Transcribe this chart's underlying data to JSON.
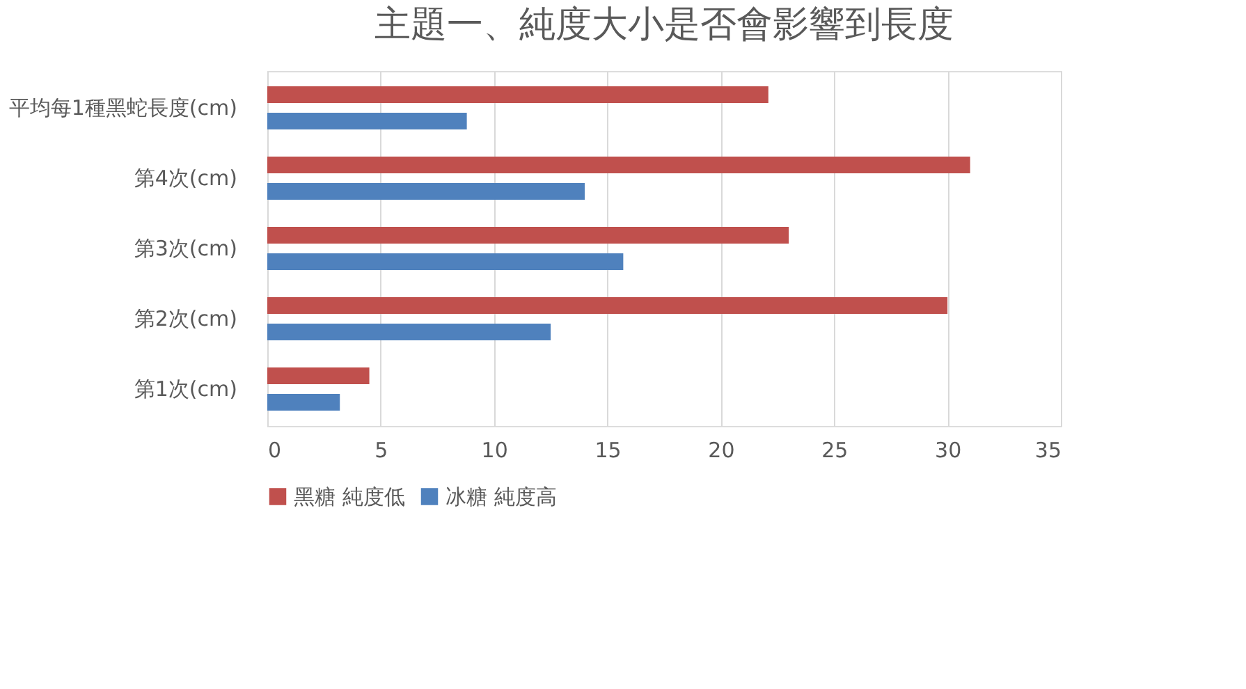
{
  "chart_data": {
    "type": "bar",
    "orientation": "horizontal",
    "title": "主題一、純度大小是否會影響到長度",
    "categories": [
      "平均每1種黑蛇長度(cm)",
      "第4次(cm)",
      "第3次(cm)",
      "第2次(cm)",
      "第1次(cm)"
    ],
    "series": [
      {
        "name": "黑糖 純度低",
        "color": "#c0504d",
        "values": [
          22.1,
          31,
          23,
          30,
          4.5
        ]
      },
      {
        "name": "冰糖 純度高",
        "color": "#4f81bd",
        "values": [
          8.8,
          14,
          15.7,
          12.5,
          3.2
        ]
      }
    ],
    "xlim": [
      0,
      35
    ],
    "xticks": [
      0,
      5,
      10,
      15,
      20,
      25,
      30,
      35
    ],
    "grid": "x",
    "legend": "bottom"
  }
}
